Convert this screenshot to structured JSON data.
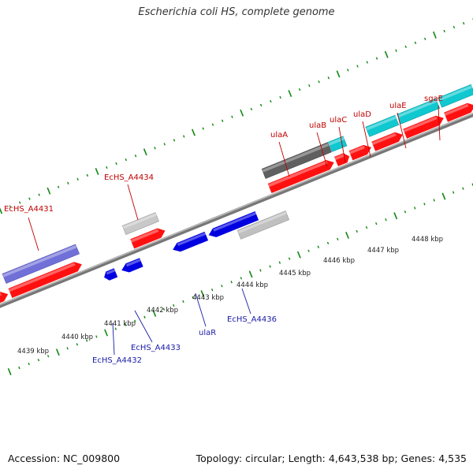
{
  "title": "Escherichia coli HS, complete genome",
  "footer": {
    "accession": "Accession: NC_009800",
    "summary": "Topology: circular; Length: 4,643,538 bp; Genes: 4,535"
  },
  "colors": {
    "forward_gene": "#ff0000",
    "reverse_gene": "#0000e0",
    "tick_green": "#118811",
    "backbone": "#888888",
    "label_red": "#c00000",
    "label_blue": "#1a1aa8"
  },
  "kbp_labels": [
    "4439 kbp",
    "4440 kbp",
    "4441 kbp",
    "4442 kbp",
    "4443 kbp",
    "4444 kbp",
    "4445 kbp",
    "4446 kbp",
    "4447 kbp",
    "4448 kbp"
  ],
  "gene_labels_top": [
    "EcHS_A4431",
    "EcHS_A4434",
    "ulaA",
    "ulaB",
    "ulaC",
    "ulaD",
    "ulaE",
    "sgaE"
  ],
  "gene_labels_bottom": [
    "EcHS_A4432",
    "EcHS_A4433",
    "ulaR",
    "EcHS_A4436"
  ]
}
